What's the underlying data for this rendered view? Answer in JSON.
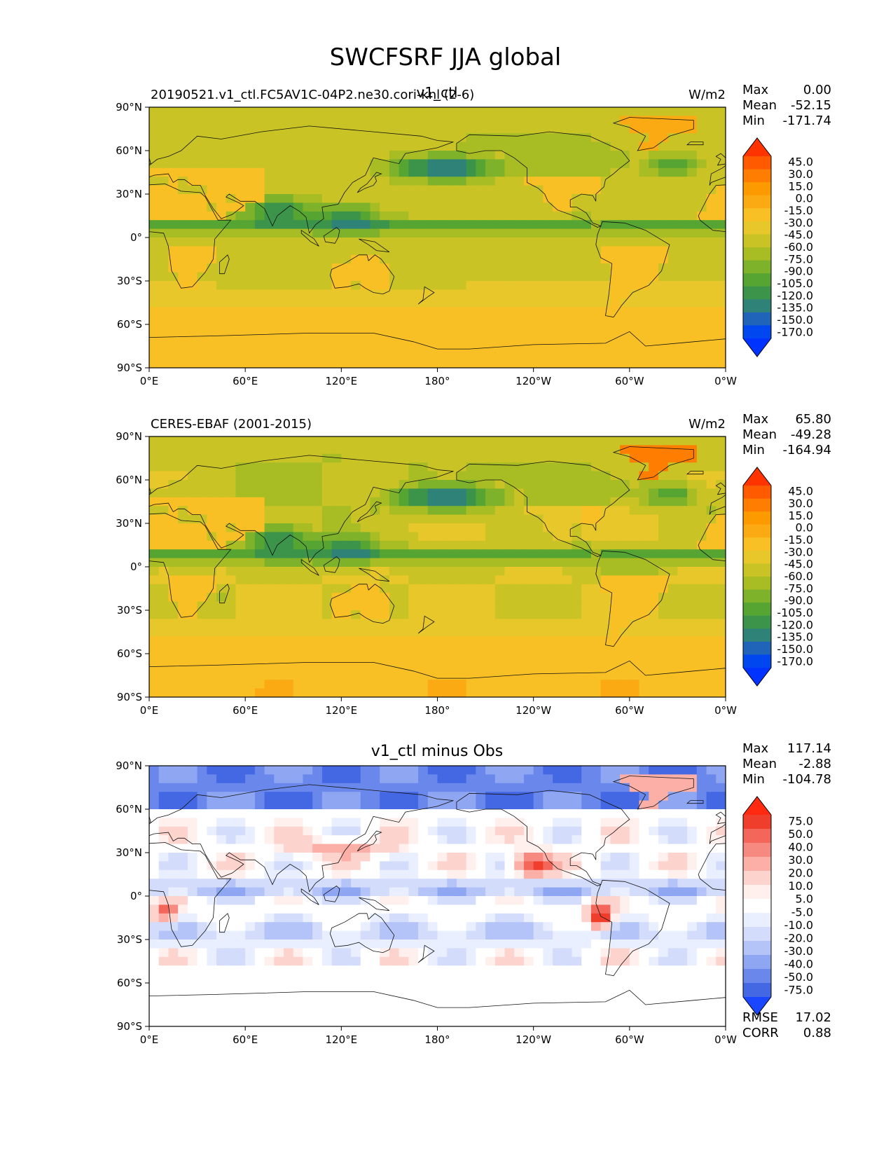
{
  "title": "SWCFSRF JJA global",
  "lon_ticks": [
    "0°E",
    "60°E",
    "120°E",
    "180°",
    "120°W",
    "60°W",
    "0°W"
  ],
  "lat_ticks": [
    "90°N",
    "60°N",
    "30°N",
    "0°",
    "30°S",
    "60°S",
    "90°S"
  ],
  "panels": [
    {
      "left_title": "20190521.v1_ctl.FC5AV1C-04P2.ne30.cori-knl (2-6)",
      "center_title": "v1_ctl",
      "units": "W/m2",
      "stats": [
        {
          "label": "Max",
          "value": "0.00"
        },
        {
          "label": "Mean",
          "value": "-52.15"
        },
        {
          "label": "Min",
          "value": "-171.74"
        }
      ],
      "colorbar_labels": [
        "45.0",
        "30.0",
        "15.0",
        "0.0",
        "-15.0",
        "-30.0",
        "-45.0",
        "-60.0",
        "-75.0",
        "-90.0",
        "-105.0",
        "-120.0",
        "-135.0",
        "-150.0",
        "-170.0"
      ]
    },
    {
      "left_title": "CERES-EBAF (2001-2015)",
      "center_title": "",
      "units": "W/m2",
      "stats": [
        {
          "label": "Max",
          "value": "65.80"
        },
        {
          "label": "Mean",
          "value": "-49.28"
        },
        {
          "label": "Min",
          "value": "-164.94"
        }
      ],
      "colorbar_labels": [
        "45.0",
        "30.0",
        "15.0",
        "0.0",
        "-15.0",
        "-30.0",
        "-45.0",
        "-60.0",
        "-75.0",
        "-90.0",
        "-105.0",
        "-120.0",
        "-135.0",
        "-150.0",
        "-170.0"
      ]
    },
    {
      "left_title": "",
      "center_title": "v1_ctl minus Obs",
      "units": "",
      "stats": [
        {
          "label": "Max",
          "value": "117.14"
        },
        {
          "label": "Mean",
          "value": "-2.88"
        },
        {
          "label": "Min",
          "value": "-104.78"
        }
      ],
      "colorbar_labels": [
        "75.0",
        "50.0",
        "40.0",
        "30.0",
        "20.0",
        "10.0",
        "5.0",
        "-5.0",
        "-10.0",
        "-20.0",
        "-30.0",
        "-40.0",
        "-50.0",
        "-75.0"
      ],
      "bottom_stats": [
        {
          "label": "RMSE",
          "value": "17.02"
        },
        {
          "label": "CORR",
          "value": "0.88"
        }
      ]
    }
  ],
  "colors": {
    "field_cmap": [
      "#ff3300",
      "#ff5a00",
      "#ff7d00",
      "#fd9a00",
      "#fbaa14",
      "#f8c024",
      "#e8c72a",
      "#c9c325",
      "#a8bd24",
      "#7fb22b",
      "#56a532",
      "#3b9449",
      "#2f8277",
      "#1f64b8",
      "#0047f0",
      "#0033ff"
    ],
    "diff_cmap": [
      "#ff2a10",
      "#ef3e2c",
      "#f4665a",
      "#f78a80",
      "#fbafa6",
      "#fdd3ce",
      "#fff0ee",
      "#ffffff",
      "#e9efff",
      "#d3dcfb",
      "#b4c4f8",
      "#8fa6f2",
      "#6a88ec",
      "#4468e4",
      "#1a46ff"
    ]
  },
  "chart_data": [
    {
      "type": "heatmap",
      "title": "v1_ctl",
      "xlim": [
        0,
        360
      ],
      "ylim": [
        -90,
        90
      ],
      "units": "W/m2",
      "stats": {
        "max": 0.0,
        "mean": -52.15,
        "min": -171.74
      },
      "levels": [
        -170,
        -150,
        -135,
        -120,
        -105,
        -90,
        -75,
        -60,
        -45,
        -30,
        -15,
        0,
        15,
        30,
        45
      ]
    },
    {
      "type": "heatmap",
      "title": "CERES-EBAF (2001-2015)",
      "xlim": [
        0,
        360
      ],
      "ylim": [
        -90,
        90
      ],
      "units": "W/m2",
      "stats": {
        "max": 65.8,
        "mean": -49.28,
        "min": -164.94
      },
      "levels": [
        -170,
        -150,
        -135,
        -120,
        -105,
        -90,
        -75,
        -60,
        -45,
        -30,
        -15,
        0,
        15,
        30,
        45
      ]
    },
    {
      "type": "heatmap",
      "title": "v1_ctl minus Obs",
      "xlim": [
        0,
        360
      ],
      "ylim": [
        -90,
        90
      ],
      "stats": {
        "max": 117.14,
        "mean": -2.88,
        "min": -104.78,
        "rmse": 17.02,
        "corr": 0.88
      },
      "levels": [
        -75,
        -50,
        -40,
        -30,
        -20,
        -10,
        -5,
        5,
        10,
        20,
        30,
        40,
        50,
        75
      ]
    }
  ]
}
